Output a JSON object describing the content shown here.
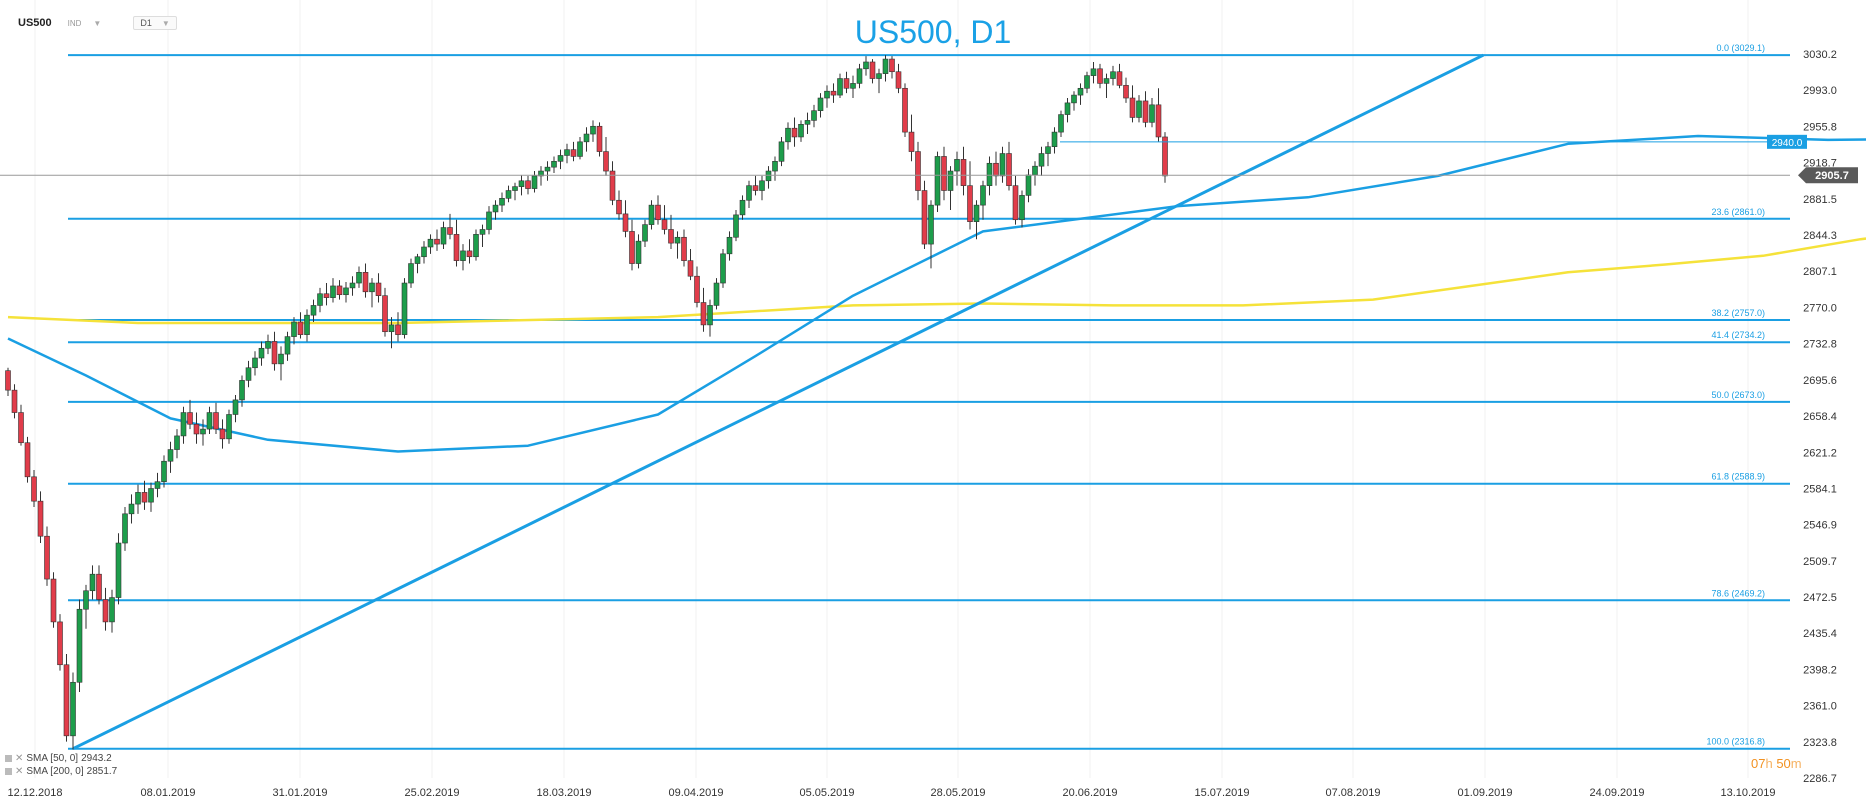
{
  "header": {
    "symbol": "US500",
    "instrument_type": "IND",
    "timeframe": "D1"
  },
  "title": "US500, D1",
  "legend": [
    {
      "label": "SMA [50, 0]",
      "value": "2943.2"
    },
    {
      "label": "SMA [200, 0]",
      "value": "2851.7"
    }
  ],
  "countdown": {
    "hours": "07",
    "h": "h",
    "minutes": "50",
    "m": "m"
  },
  "chart_data": {
    "type": "candlestick",
    "y_ticks": [
      "3030.2",
      "2993.0",
      "2955.8",
      "2918.7",
      "2881.5",
      "2844.3",
      "2807.1",
      "2770.0",
      "2732.8",
      "2695.6",
      "2658.4",
      "2621.2",
      "2584.1",
      "2546.9",
      "2509.7",
      "2472.5",
      "2435.4",
      "2398.2",
      "2361.0",
      "2323.8",
      "2286.7"
    ],
    "ylim": [
      2286.7,
      3030.2
    ],
    "x_ticks": [
      "12.12.2018",
      "08.01.2019",
      "31.01.2019",
      "25.02.2019",
      "18.03.2019",
      "09.04.2019",
      "05.05.2019",
      "28.05.2019",
      "20.06.2019",
      "15.07.2019",
      "07.08.2019",
      "01.09.2019",
      "24.09.2019",
      "13.10.2019"
    ],
    "current_price": "2905.7",
    "price_line": {
      "label": "2940.0",
      "value": 2940.0
    },
    "fibonacci": [
      {
        "label": "0.0 (3029.1)",
        "value": 3029.1
      },
      {
        "label": "23.6 (2861.0)",
        "value": 2861.0
      },
      {
        "label": "38.2 (2757.0)",
        "value": 2757.0
      },
      {
        "label": "41.4 (2734.2)",
        "value": 2734.2
      },
      {
        "label": "50.0 (2673.0)",
        "value": 2673.0
      },
      {
        "label": "61.8 (2588.9)",
        "value": 2588.9
      },
      {
        "label": "78.6 (2469.2)",
        "value": 2469.2
      },
      {
        "label": "100.0 (2316.8)",
        "value": 2316.8
      }
    ],
    "trendline": {
      "from": {
        "bar": 10,
        "value": 2316.8
      },
      "to": {
        "bar": 227,
        "value": 3029.1
      }
    },
    "sma50_label": "SMA [50, 0]",
    "sma50": [
      [
        0,
        2738
      ],
      [
        12,
        2700
      ],
      [
        25,
        2656
      ],
      [
        40,
        2634
      ],
      [
        60,
        2622
      ],
      [
        80,
        2628
      ],
      [
        100,
        2660
      ],
      [
        115,
        2720
      ],
      [
        130,
        2782
      ],
      [
        150,
        2848
      ],
      [
        180,
        2874
      ],
      [
        200,
        2883
      ],
      [
        220,
        2905
      ],
      [
        240,
        2938
      ],
      [
        260,
        2946
      ],
      [
        280,
        2942
      ],
      [
        300,
        2943.2
      ]
    ],
    "sma200_label": "SMA [200, 0]",
    "sma200": [
      [
        0,
        2760
      ],
      [
        20,
        2754
      ],
      [
        60,
        2754
      ],
      [
        100,
        2760
      ],
      [
        130,
        2772
      ],
      [
        150,
        2774
      ],
      [
        170,
        2772
      ],
      [
        190,
        2772
      ],
      [
        210,
        2778
      ],
      [
        225,
        2792
      ],
      [
        240,
        2806
      ],
      [
        255,
        2814
      ],
      [
        270,
        2823
      ],
      [
        285,
        2840
      ],
      [
        300,
        2851.7
      ]
    ],
    "candles_ohlc": [
      [
        2705,
        2708,
        2679,
        2685
      ],
      [
        2685,
        2691,
        2656,
        2662
      ],
      [
        2662,
        2670,
        2628,
        2631
      ],
      [
        2631,
        2637,
        2590,
        2596
      ],
      [
        2596,
        2603,
        2565,
        2571
      ],
      [
        2571,
        2581,
        2528,
        2535
      ],
      [
        2535,
        2545,
        2484,
        2491
      ],
      [
        2491,
        2498,
        2441,
        2447
      ],
      [
        2447,
        2455,
        2397,
        2403
      ],
      [
        2403,
        2414,
        2324,
        2330
      ],
      [
        2330,
        2395,
        2316,
        2385
      ],
      [
        2385,
        2470,
        2375,
        2460
      ],
      [
        2460,
        2485,
        2440,
        2479
      ],
      [
        2479,
        2505,
        2470,
        2496
      ],
      [
        2496,
        2505,
        2465,
        2470
      ],
      [
        2470,
        2482,
        2438,
        2447
      ],
      [
        2447,
        2480,
        2436,
        2472
      ],
      [
        2472,
        2538,
        2465,
        2528
      ],
      [
        2528,
        2565,
        2520,
        2558
      ],
      [
        2558,
        2578,
        2548,
        2568
      ],
      [
        2568,
        2588,
        2558,
        2580
      ],
      [
        2580,
        2592,
        2562,
        2570
      ],
      [
        2570,
        2590,
        2560,
        2584
      ],
      [
        2584,
        2600,
        2575,
        2591
      ],
      [
        2591,
        2618,
        2585,
        2612
      ],
      [
        2612,
        2632,
        2600,
        2624
      ],
      [
        2624,
        2645,
        2615,
        2638
      ],
      [
        2638,
        2668,
        2630,
        2662
      ],
      [
        2662,
        2675,
        2645,
        2650
      ],
      [
        2650,
        2662,
        2630,
        2640
      ],
      [
        2640,
        2655,
        2628,
        2645
      ],
      [
        2645,
        2668,
        2640,
        2662
      ],
      [
        2662,
        2672,
        2640,
        2645
      ],
      [
        2645,
        2655,
        2625,
        2635
      ],
      [
        2635,
        2665,
        2630,
        2660
      ],
      [
        2660,
        2680,
        2652,
        2675
      ],
      [
        2675,
        2700,
        2668,
        2695
      ],
      [
        2695,
        2715,
        2688,
        2708
      ],
      [
        2708,
        2725,
        2700,
        2718
      ],
      [
        2718,
        2735,
        2710,
        2728
      ],
      [
        2728,
        2742,
        2722,
        2735
      ],
      [
        2735,
        2745,
        2705,
        2712
      ],
      [
        2712,
        2730,
        2695,
        2722
      ],
      [
        2722,
        2745,
        2715,
        2740
      ],
      [
        2740,
        2760,
        2732,
        2755
      ],
      [
        2755,
        2765,
        2738,
        2742
      ],
      [
        2742,
        2768,
        2735,
        2762
      ],
      [
        2762,
        2778,
        2755,
        2772
      ],
      [
        2772,
        2790,
        2765,
        2784
      ],
      [
        2784,
        2795,
        2772,
        2780
      ],
      [
        2780,
        2800,
        2775,
        2792
      ],
      [
        2792,
        2798,
        2778,
        2783
      ],
      [
        2783,
        2796,
        2775,
        2790
      ],
      [
        2790,
        2802,
        2782,
        2795
      ],
      [
        2795,
        2812,
        2790,
        2806
      ],
      [
        2806,
        2815,
        2780,
        2786
      ],
      [
        2786,
        2800,
        2770,
        2795
      ],
      [
        2795,
        2805,
        2775,
        2782
      ],
      [
        2782,
        2790,
        2740,
        2745
      ],
      [
        2745,
        2760,
        2728,
        2752
      ],
      [
        2752,
        2765,
        2735,
        2742
      ],
      [
        2742,
        2800,
        2738,
        2795
      ],
      [
        2795,
        2820,
        2790,
        2815
      ],
      [
        2815,
        2825,
        2805,
        2822
      ],
      [
        2822,
        2838,
        2815,
        2832
      ],
      [
        2832,
        2845,
        2825,
        2840
      ],
      [
        2840,
        2850,
        2828,
        2835
      ],
      [
        2835,
        2858,
        2830,
        2852
      ],
      [
        2852,
        2866,
        2840,
        2845
      ],
      [
        2845,
        2860,
        2812,
        2818
      ],
      [
        2818,
        2835,
        2808,
        2828
      ],
      [
        2828,
        2840,
        2815,
        2822
      ],
      [
        2822,
        2850,
        2818,
        2845
      ],
      [
        2845,
        2855,
        2832,
        2850
      ],
      [
        2850,
        2874,
        2845,
        2868
      ],
      [
        2868,
        2880,
        2860,
        2875
      ],
      [
        2875,
        2888,
        2868,
        2882
      ],
      [
        2882,
        2895,
        2878,
        2890
      ],
      [
        2890,
        2898,
        2880,
        2894
      ],
      [
        2894,
        2906,
        2885,
        2900
      ],
      [
        2900,
        2905,
        2886,
        2892
      ],
      [
        2892,
        2910,
        2888,
        2905
      ],
      [
        2905,
        2915,
        2895,
        2910
      ],
      [
        2910,
        2920,
        2900,
        2914
      ],
      [
        2914,
        2925,
        2908,
        2920
      ],
      [
        2920,
        2932,
        2912,
        2926
      ],
      [
        2926,
        2938,
        2918,
        2932
      ],
      [
        2932,
        2940,
        2920,
        2925
      ],
      [
        2925,
        2945,
        2922,
        2940
      ],
      [
        2940,
        2955,
        2930,
        2948
      ],
      [
        2948,
        2962,
        2940,
        2956
      ],
      [
        2956,
        2960,
        2925,
        2930
      ],
      [
        2930,
        2945,
        2905,
        2910
      ],
      [
        2910,
        2920,
        2875,
        2880
      ],
      [
        2880,
        2890,
        2860,
        2866
      ],
      [
        2866,
        2880,
        2842,
        2848
      ],
      [
        2848,
        2860,
        2808,
        2815
      ],
      [
        2815,
        2845,
        2810,
        2838
      ],
      [
        2838,
        2860,
        2832,
        2855
      ],
      [
        2855,
        2880,
        2850,
        2875
      ],
      [
        2875,
        2885,
        2855,
        2860
      ],
      [
        2860,
        2875,
        2845,
        2850
      ],
      [
        2850,
        2865,
        2830,
        2836
      ],
      [
        2836,
        2848,
        2820,
        2842
      ],
      [
        2842,
        2850,
        2812,
        2818
      ],
      [
        2818,
        2830,
        2798,
        2802
      ],
      [
        2802,
        2812,
        2770,
        2775
      ],
      [
        2775,
        2790,
        2745,
        2752
      ],
      [
        2752,
        2778,
        2740,
        2772
      ],
      [
        2772,
        2800,
        2768,
        2795
      ],
      [
        2795,
        2830,
        2790,
        2825
      ],
      [
        2825,
        2848,
        2818,
        2842
      ],
      [
        2842,
        2870,
        2838,
        2865
      ],
      [
        2865,
        2885,
        2860,
        2880
      ],
      [
        2880,
        2900,
        2872,
        2895
      ],
      [
        2895,
        2905,
        2885,
        2890
      ],
      [
        2890,
        2905,
        2880,
        2900
      ],
      [
        2900,
        2915,
        2892,
        2910
      ],
      [
        2910,
        2925,
        2900,
        2920
      ],
      [
        2920,
        2945,
        2915,
        2940
      ],
      [
        2940,
        2960,
        2932,
        2954
      ],
      [
        2954,
        2965,
        2935,
        2945
      ],
      [
        2945,
        2962,
        2940,
        2958
      ],
      [
        2958,
        2970,
        2948,
        2962
      ],
      [
        2962,
        2978,
        2955,
        2972
      ],
      [
        2972,
        2990,
        2965,
        2985
      ],
      [
        2985,
        2998,
        2975,
        2992
      ],
      [
        2992,
        3000,
        2980,
        2988
      ],
      [
        2988,
        3010,
        2985,
        3005
      ],
      [
        3005,
        3012,
        2990,
        2995
      ],
      [
        2995,
        3008,
        2985,
        3000
      ],
      [
        3000,
        3020,
        2995,
        3015
      ],
      [
        3015,
        3028,
        3008,
        3022
      ],
      [
        3022,
        3025,
        3000,
        3005
      ],
      [
        3005,
        3015,
        2990,
        3010
      ],
      [
        3010,
        3029,
        3002,
        3025
      ],
      [
        3025,
        3028,
        3005,
        3012
      ],
      [
        3012,
        3020,
        2990,
        2995
      ],
      [
        2995,
        3000,
        2945,
        2950
      ],
      [
        2950,
        2968,
        2920,
        2930
      ],
      [
        2930,
        2940,
        2880,
        2890
      ],
      [
        2890,
        2900,
        2830,
        2835
      ],
      [
        2835,
        2880,
        2810,
        2875
      ],
      [
        2875,
        2930,
        2868,
        2925
      ],
      [
        2925,
        2935,
        2880,
        2890
      ],
      [
        2890,
        2915,
        2870,
        2910
      ],
      [
        2910,
        2930,
        2895,
        2922
      ],
      [
        2922,
        2935,
        2885,
        2895
      ],
      [
        2895,
        2920,
        2850,
        2858
      ],
      [
        2858,
        2880,
        2840,
        2875
      ],
      [
        2875,
        2900,
        2860,
        2895
      ],
      [
        2895,
        2925,
        2885,
        2918
      ],
      [
        2918,
        2930,
        2895,
        2905
      ],
      [
        2905,
        2935,
        2898,
        2928
      ],
      [
        2928,
        2940,
        2890,
        2895
      ],
      [
        2895,
        2905,
        2855,
        2860
      ],
      [
        2860,
        2890,
        2852,
        2885
      ],
      [
        2885,
        2912,
        2878,
        2906
      ],
      [
        2906,
        2920,
        2895,
        2915
      ],
      [
        2915,
        2935,
        2905,
        2928
      ],
      [
        2928,
        2940,
        2915,
        2935
      ],
      [
        2935,
        2955,
        2928,
        2950
      ],
      [
        2950,
        2972,
        2945,
        2968
      ],
      [
        2968,
        2985,
        2960,
        2980
      ],
      [
        2980,
        2992,
        2972,
        2988
      ],
      [
        2988,
        3000,
        2978,
        2995
      ],
      [
        2995,
        3012,
        2990,
        3008
      ],
      [
        3008,
        3022,
        3000,
        3015
      ],
      [
        3015,
        3020,
        2995,
        3000
      ],
      [
        3000,
        3010,
        2985,
        3005
      ],
      [
        3005,
        3018,
        2998,
        3012
      ],
      [
        3012,
        3020,
        2995,
        2998
      ],
      [
        2998,
        3006,
        2980,
        2985
      ],
      [
        2985,
        2998,
        2960,
        2965
      ],
      [
        2965,
        2988,
        2960,
        2982
      ],
      [
        2982,
        2992,
        2955,
        2960
      ],
      [
        2960,
        2985,
        2955,
        2978
      ],
      [
        2978,
        2995,
        2940,
        2945
      ],
      [
        2945,
        2950,
        2898,
        2905
      ]
    ]
  }
}
